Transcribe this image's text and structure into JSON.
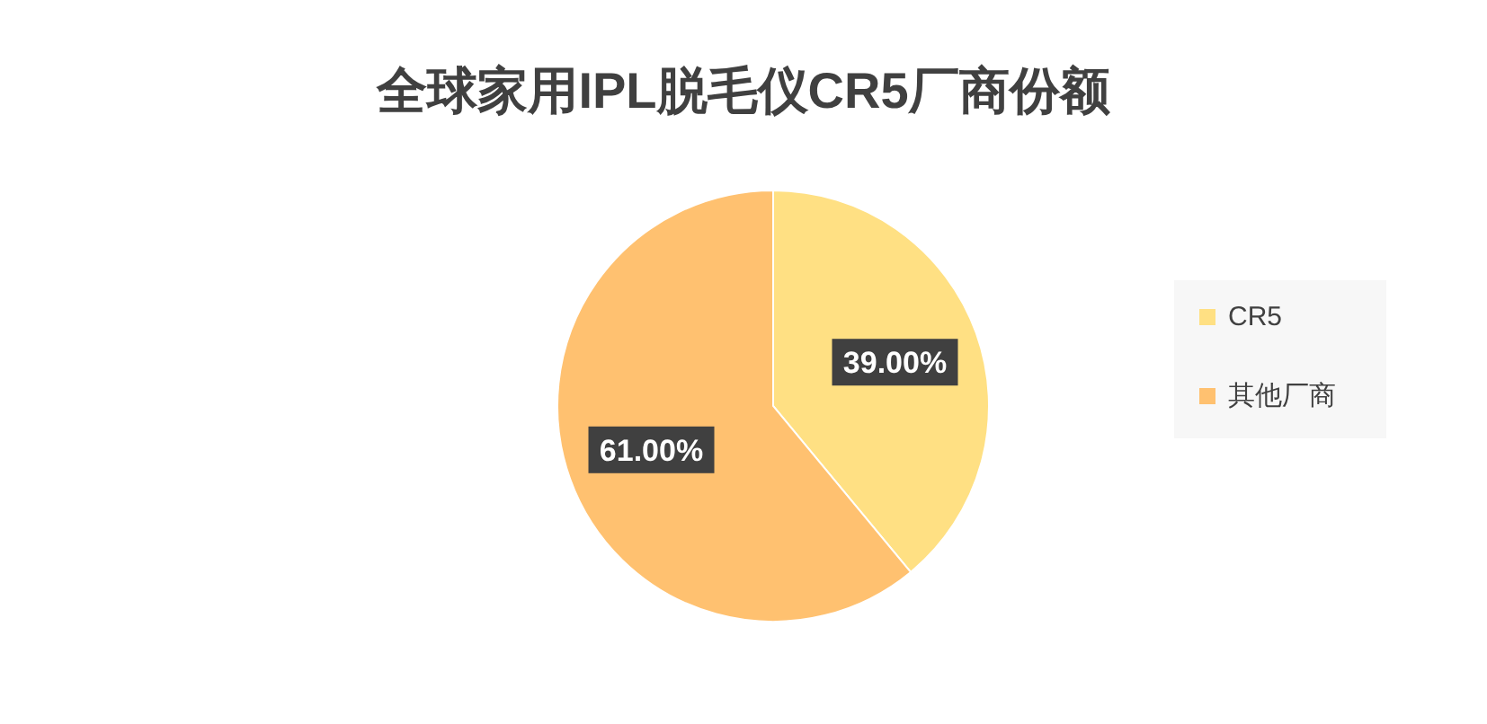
{
  "chart_data": {
    "type": "pie",
    "title": "全球家用IPL脱毛仪CR5厂商份额",
    "categories": [
      "CR5",
      "其他厂商"
    ],
    "values": [
      39,
      61
    ],
    "colors": [
      "#ffe083",
      "#ffc170"
    ],
    "value_labels": [
      "39.00%",
      "61.00%"
    ],
    "legend": "right"
  }
}
